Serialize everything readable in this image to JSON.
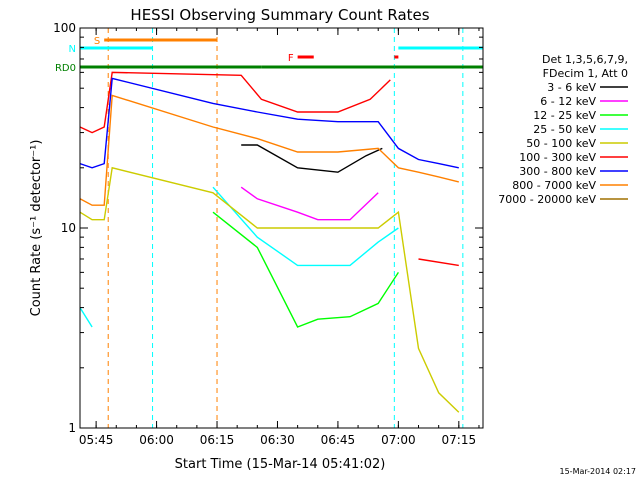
{
  "chart_data": {
    "type": "line",
    "title": "HESSI Observing Summary Count Rates",
    "xlabel": "Start Time (15-Mar-14 05:41:02)",
    "ylabel": "Count Rate (s⁻¹ detector⁻¹)",
    "yscale": "log",
    "ylim": [
      1,
      100
    ],
    "xlim": [
      "05:41",
      "07:21"
    ],
    "x_ticks": [
      "05:45",
      "06:00",
      "06:15",
      "06:30",
      "06:45",
      "07:00",
      "07:15"
    ],
    "y_ticks": [
      "1",
      "10",
      "100"
    ],
    "legend_position": "right",
    "legend_header": [
      "Det 1,3,5,6,7,9,",
      "FDecim 1, Att 0"
    ],
    "timestamp": "15-Mar-2014 02:17",
    "series": [
      {
        "name": "3 - 6 keV",
        "color": "#000000",
        "x": [
          "05:41",
          "05:46",
          "05:50",
          "06:21",
          "06:25",
          "06:35",
          "06:45",
          "06:52",
          "06:56",
          "06:59"
        ],
        "y": [
          null,
          null,
          null,
          26,
          26,
          20,
          19,
          23,
          25,
          null
        ]
      },
      {
        "name": "6 - 12 keV",
        "color": "#ff00ff",
        "x": [
          "05:41",
          "05:46",
          "05:50",
          "06:21",
          "06:25",
          "06:35",
          "06:40",
          "06:48",
          "06:55",
          "06:59"
        ],
        "y": [
          null,
          null,
          null,
          16,
          14,
          12,
          11,
          11,
          15,
          null
        ]
      },
      {
        "name": "12 - 25 keV",
        "color": "#00ff00",
        "x": [
          "05:41",
          "05:46",
          "06:14",
          "06:25",
          "06:35",
          "06:40",
          "06:48",
          "06:55",
          "07:00"
        ],
        "y": [
          null,
          null,
          12,
          8,
          3.2,
          3.5,
          3.6,
          4.2,
          6
        ]
      },
      {
        "name": "25 - 50 keV",
        "color": "#00ffff",
        "x": [
          "05:41",
          "05:44",
          "05:46",
          "06:14",
          "06:25",
          "06:35",
          "06:40",
          "06:48",
          "06:55",
          "07:00",
          "07:05"
        ],
        "y": [
          4,
          3.2,
          null,
          16,
          9,
          6.5,
          6.5,
          6.5,
          8.5,
          10,
          null
        ]
      },
      {
        "name": "50 - 100 keV",
        "color": "#cccc00",
        "x": [
          "05:41",
          "05:44",
          "05:47",
          "05:49",
          "06:14",
          "06:25",
          "06:35",
          "06:45",
          "06:55",
          "07:00",
          "07:05",
          "07:10",
          "07:15"
        ],
        "y": [
          12,
          11,
          11,
          20,
          15,
          10,
          10,
          10,
          10,
          12,
          2.5,
          1.5,
          1.2
        ]
      },
      {
        "name": "100 - 300 keV",
        "color": "#ff0000",
        "x": [
          "05:41",
          "05:44",
          "05:47",
          "05:49",
          "06:21",
          "06:26",
          "06:35",
          "06:45",
          "06:53",
          "06:58",
          "07:00",
          "07:05",
          "07:15"
        ],
        "y": [
          32,
          30,
          32,
          60,
          58,
          44,
          38,
          38,
          44,
          55,
          null,
          7,
          6.5
        ]
      },
      {
        "name": "300 - 800 keV",
        "color": "#0000ff",
        "x": [
          "05:41",
          "05:44",
          "05:47",
          "05:49",
          "06:14",
          "06:25",
          "06:35",
          "06:45",
          "06:55",
          "07:00",
          "07:05",
          "07:10",
          "07:15"
        ],
        "y": [
          21,
          20,
          21,
          56,
          42,
          38,
          35,
          34,
          34,
          25,
          22,
          21,
          20
        ]
      },
      {
        "name": "800 - 7000 keV",
        "color": "#ff8000",
        "x": [
          "05:41",
          "05:44",
          "05:47",
          "05:49",
          "06:14",
          "06:25",
          "06:35",
          "06:45",
          "06:55",
          "07:00",
          "07:05",
          "07:10",
          "07:15"
        ],
        "y": [
          14,
          13,
          13,
          46,
          32,
          28,
          24,
          24,
          25,
          20,
          19,
          18,
          17
        ]
      },
      {
        "name": "7000 - 20000 keV",
        "color": "#a07000",
        "x": [
          "05:41",
          "05:46",
          "07:15"
        ],
        "y": [
          null,
          null,
          null
        ]
      }
    ],
    "flag_bars": [
      {
        "label": "S",
        "color": "#ff8000",
        "x_start": "05:47",
        "x_end": "06:15"
      },
      {
        "label": "N",
        "color": "#00ffff",
        "x_start": "05:41",
        "x_end": "05:59"
      },
      {
        "label": "N",
        "color": "#00ffff",
        "x_start": "07:00",
        "x_end": "07:21"
      },
      {
        "label": "F",
        "color": "#ff0000",
        "x_start": "06:35",
        "x_end": "06:39"
      },
      {
        "label": "F",
        "color": "#ff0000",
        "x_start": "06:59",
        "x_end": "07:00"
      },
      {
        "label": "RD0",
        "color": "#008000",
        "x_start": "05:41",
        "x_end": "06:15"
      },
      {
        "label": "RD0",
        "color": "#008000",
        "x_start": "06:15",
        "x_end": "06:26"
      },
      {
        "label": "RD0",
        "color": "#008000",
        "x_start": "06:26",
        "x_end": "06:59"
      },
      {
        "label": "RD0",
        "color": "#008000",
        "x_start": "06:59",
        "x_end": "07:21"
      }
    ],
    "vertical_markers": [
      {
        "x": "05:48",
        "color": "#ff8000"
      },
      {
        "x": "05:59",
        "color": "#00ffff"
      },
      {
        "x": "06:15",
        "color": "#ff8000"
      },
      {
        "x": "06:59",
        "color": "#00ffff"
      },
      {
        "x": "07:16",
        "color": "#00ffff"
      }
    ]
  }
}
